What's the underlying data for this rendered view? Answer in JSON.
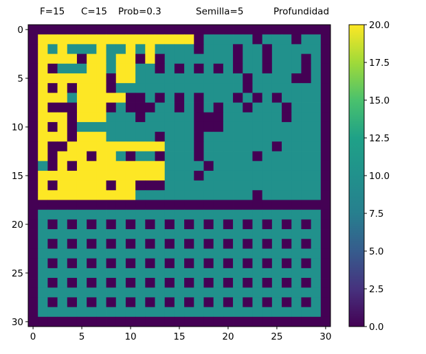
{
  "params": {
    "filas": "F=15",
    "columnas": "C=15",
    "prob": "Prob=0.3",
    "semilla": "Semilla=5",
    "modo": "Profundidad"
  },
  "chart_data": {
    "type": "heatmap",
    "title": "",
    "xlabel": "",
    "ylabel": "",
    "colormap": "viridis",
    "xlim": [
      -0.5,
      30.5
    ],
    "ylim": [
      30.5,
      -0.5
    ],
    "x_ticks": [
      0,
      5,
      10,
      15,
      20,
      25,
      30
    ],
    "y_ticks": [
      0,
      5,
      10,
      15,
      20,
      25,
      30
    ],
    "colorbar": {
      "min": 0,
      "max": 20,
      "ticks": [
        0,
        2.5,
        5,
        7.5,
        10,
        12.5,
        15,
        17.5,
        20
      ],
      "tick_labels": [
        "0.0",
        "2.5",
        "5.0",
        "7.5",
        "10.0",
        "12.5",
        "15.0",
        "17.5",
        "20.0"
      ]
    },
    "values_legend": {
      "0": "wall (dark purple)",
      "10": "open cell (teal)",
      "20": "explored path (yellow)"
    },
    "rows": [
      "0000000000000000000000000000000",
      "0222222222222222201111101110110",
      "0212111211212111101110110111110",
      "0222202212202011111110110111010",
      "0201112212211010101010110111010",
      "0222222202211111111111011110010",
      "0202022201111111111111011111110",
      "0222122222001010101110101011110",
      "0200022201000110101011011101110",
      "0222022211101111100011111101110",
      "0202011111111111100011111111110",
      "0222022211111011101111111111110",
      "0200222222222211101111111011110",
      "0202220221011011101111101111110",
      "0102022222222211110111111111110",
      "0222222222222211101111111111110",
      "0202222202200011111111111111110",
      "0222222222211111111111101111110",
      "0000000000000000000000000000000",
      "0111111111111111111111111111110",
      "0101010101010101010101010101010",
      "0111111111111111111111111111110",
      "0101010101010101010101010101010",
      "0111111111111111111111111111110",
      "0101010101010101010101010101010",
      "0111111111111111111111111111110",
      "0101010101010101010101010101010",
      "0111111111111111111111111111110",
      "0101010101010101010101010101010",
      "0111111111111111111111111111110",
      "0000000000000000000000000000000"
    ]
  }
}
